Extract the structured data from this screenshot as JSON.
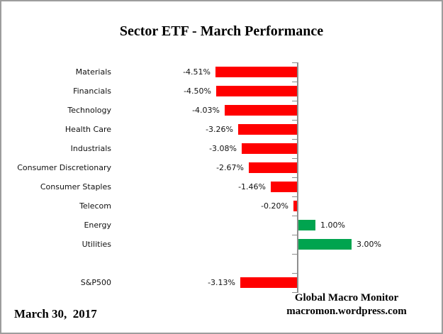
{
  "page": {
    "title": "Sector ETF - March Performance",
    "footer": {
      "date": "March 30,  2017",
      "attribution_line1": "Global Macro Monitor",
      "attribution_line2": "macromon.wordpress.com"
    }
  },
  "chart_data": {
    "type": "bar",
    "orientation": "horizontal",
    "title": "Sector ETF - March Performance",
    "categories": [
      "Materials",
      "Financials",
      "Technology",
      "Health Care",
      "Industrials",
      "Consumer Discretionary",
      "Consumer Staples",
      "Telecom",
      "Energy",
      "Utilities",
      "",
      "S&P500"
    ],
    "values": [
      -4.51,
      -4.5,
      -4.03,
      -3.26,
      -3.08,
      -2.67,
      -1.46,
      -0.2,
      1.0,
      3.0,
      null,
      -3.13
    ],
    "data_labels": [
      "-4.51%",
      "-4.50%",
      "-4.03%",
      "-3.26%",
      "-3.08%",
      "-2.67%",
      "-1.46%",
      "-0.20%",
      "1.00%",
      "3.00%",
      "",
      "-3.13%"
    ],
    "value_axis": {
      "baseline": 0,
      "tick_labels_visible": false,
      "gridlines": false
    },
    "legend": "none",
    "colors": {
      "negative_bar": "#ff0000",
      "positive_bar": "#00a44f",
      "axis": "#8e8e8e",
      "text": "#111111"
    }
  }
}
